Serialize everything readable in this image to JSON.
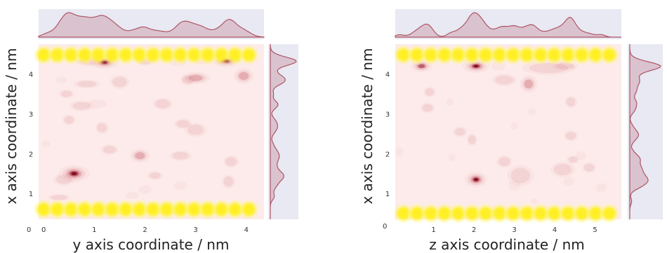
{
  "chart_data": [
    {
      "type": "heatmap",
      "subtype": "kde-joint-plot-with-marginals",
      "xlabel": "y axis coordinate / nm",
      "ylabel": "x axis coordinate / nm",
      "xticks": [
        "0",
        "1",
        "2",
        "3",
        "4"
      ],
      "yticks": [
        "1",
        "2",
        "3",
        "4"
      ],
      "origin_label": "0",
      "xlim": [
        -0.1,
        4.35
      ],
      "ylim": [
        0.35,
        4.75
      ],
      "grid": false,
      "colors": {
        "background": "#fcebea",
        "density": "#7a0016",
        "marginal": "#b05566",
        "marginal_panel": "#e8e9f2",
        "walls": "#ffee22"
      },
      "wall_rows_y": [
        4.48,
        0.6
      ],
      "wall_beads_x": [
        0.0,
        0.27,
        0.54,
        0.81,
        1.08,
        1.35,
        1.62,
        1.89,
        2.16,
        2.43,
        2.7,
        2.97,
        3.24,
        3.51,
        3.78,
        4.05
      ],
      "points": [
        {
          "x": 1.2,
          "y": 4.3,
          "sx": 0.13,
          "sy": 0.08,
          "w": 1.0
        },
        {
          "x": 0.9,
          "y": 4.33,
          "sx": 0.13,
          "sy": 0.06,
          "w": 0.35
        },
        {
          "x": 3.6,
          "y": 4.33,
          "sx": 0.13,
          "sy": 0.07,
          "w": 0.95
        },
        {
          "x": 2.0,
          "y": 4.32,
          "sx": 0.08,
          "sy": 0.05,
          "w": 0.25
        },
        {
          "x": 2.65,
          "y": 4.32,
          "sx": 0.08,
          "sy": 0.05,
          "w": 0.2
        },
        {
          "x": 3.15,
          "y": 4.33,
          "sx": 0.07,
          "sy": 0.04,
          "w": 0.2
        },
        {
          "x": 0.6,
          "y": 1.5,
          "sx": 0.14,
          "sy": 0.1,
          "w": 1.0
        },
        {
          "x": 0.4,
          "y": 1.35,
          "sx": 0.1,
          "sy": 0.07,
          "w": 0.3
        },
        {
          "x": 1.5,
          "y": 3.8,
          "sx": 0.09,
          "sy": 0.08,
          "w": 0.4
        },
        {
          "x": 3.0,
          "y": 3.9,
          "sx": 0.13,
          "sy": 0.07,
          "w": 0.45
        },
        {
          "x": 2.85,
          "y": 3.85,
          "sx": 0.07,
          "sy": 0.06,
          "w": 0.25
        },
        {
          "x": 3.95,
          "y": 3.95,
          "sx": 0.09,
          "sy": 0.09,
          "w": 0.45
        },
        {
          "x": 0.85,
          "y": 3.75,
          "sx": 0.12,
          "sy": 0.05,
          "w": 0.25
        },
        {
          "x": 0.45,
          "y": 3.5,
          "sx": 0.07,
          "sy": 0.05,
          "w": 0.3
        },
        {
          "x": 0.35,
          "y": 3.85,
          "sx": 0.05,
          "sy": 0.04,
          "w": 0.2
        },
        {
          "x": 2.35,
          "y": 3.25,
          "sx": 0.09,
          "sy": 0.07,
          "w": 0.35
        },
        {
          "x": 0.75,
          "y": 3.2,
          "sx": 0.11,
          "sy": 0.06,
          "w": 0.35
        },
        {
          "x": 1.05,
          "y": 3.25,
          "sx": 0.09,
          "sy": 0.05,
          "w": 0.2
        },
        {
          "x": 3.0,
          "y": 2.6,
          "sx": 0.1,
          "sy": 0.08,
          "w": 0.4
        },
        {
          "x": 2.75,
          "y": 2.75,
          "sx": 0.08,
          "sy": 0.06,
          "w": 0.25
        },
        {
          "x": 0.5,
          "y": 2.85,
          "sx": 0.06,
          "sy": 0.06,
          "w": 0.3
        },
        {
          "x": 1.15,
          "y": 2.65,
          "sx": 0.06,
          "sy": 0.07,
          "w": 0.25
        },
        {
          "x": 1.3,
          "y": 2.1,
          "sx": 0.08,
          "sy": 0.06,
          "w": 0.35
        },
        {
          "x": 1.9,
          "y": 1.95,
          "sx": 0.09,
          "sy": 0.08,
          "w": 0.45
        },
        {
          "x": 2.7,
          "y": 1.95,
          "sx": 0.1,
          "sy": 0.06,
          "w": 0.3
        },
        {
          "x": 3.7,
          "y": 1.8,
          "sx": 0.07,
          "sy": 0.07,
          "w": 0.35
        },
        {
          "x": 2.2,
          "y": 1.45,
          "sx": 0.07,
          "sy": 0.05,
          "w": 0.25
        },
        {
          "x": 3.65,
          "y": 1.3,
          "sx": 0.06,
          "sy": 0.08,
          "w": 0.25
        },
        {
          "x": 2.7,
          "y": 1.2,
          "sx": 0.06,
          "sy": 0.05,
          "w": 0.2
        },
        {
          "x": 2.0,
          "y": 1.1,
          "sx": 0.06,
          "sy": 0.05,
          "w": 0.2
        },
        {
          "x": 0.3,
          "y": 0.9,
          "sx": 0.1,
          "sy": 0.04,
          "w": 0.25
        },
        {
          "x": 0.05,
          "y": 2.25,
          "sx": 0.04,
          "sy": 0.04,
          "w": 0.2
        },
        {
          "x": 1.75,
          "y": 0.95,
          "sx": 0.06,
          "sy": 0.04,
          "w": 0.2
        }
      ]
    },
    {
      "type": "heatmap",
      "subtype": "kde-joint-plot-with-marginals",
      "xlabel": "z axis coordinate / nm",
      "ylabel": "x axis coordinate / nm",
      "xticks": [
        "1",
        "2",
        "3",
        "4",
        "5"
      ],
      "yticks": [
        "1",
        "2",
        "3",
        "4"
      ],
      "origin_label": "0",
      "xlim": [
        0.05,
        5.65
      ],
      "ylim": [
        0.35,
        4.75
      ],
      "grid": false,
      "colors": {
        "background": "#fcebea",
        "density": "#7a0016",
        "marginal": "#b05566",
        "marginal_panel": "#e8e9f2",
        "walls": "#ffee22"
      },
      "wall_rows_y": [
        4.48,
        0.5
      ],
      "wall_beads_x": [
        0.25,
        0.59,
        0.93,
        1.27,
        1.61,
        1.95,
        2.29,
        2.63,
        2.97,
        3.31,
        3.65,
        3.99,
        4.33,
        4.67,
        5.01,
        5.35
      ],
      "points": [
        {
          "x": 2.05,
          "y": 4.2,
          "sx": 0.15,
          "sy": 0.08,
          "w": 1.0
        },
        {
          "x": 0.7,
          "y": 4.2,
          "sx": 0.12,
          "sy": 0.07,
          "w": 0.75
        },
        {
          "x": 3.85,
          "y": 4.15,
          "sx": 0.3,
          "sy": 0.08,
          "w": 0.4
        },
        {
          "x": 4.25,
          "y": 4.2,
          "sx": 0.15,
          "sy": 0.05,
          "w": 0.25
        },
        {
          "x": 2.6,
          "y": 4.2,
          "sx": 0.08,
          "sy": 0.05,
          "w": 0.2
        },
        {
          "x": 2.05,
          "y": 1.35,
          "sx": 0.13,
          "sy": 0.09,
          "w": 0.95
        },
        {
          "x": 2.75,
          "y": 3.85,
          "sx": 0.14,
          "sy": 0.07,
          "w": 0.4
        },
        {
          "x": 3.35,
          "y": 3.75,
          "sx": 0.1,
          "sy": 0.1,
          "w": 0.45
        },
        {
          "x": 0.9,
          "y": 3.55,
          "sx": 0.07,
          "sy": 0.06,
          "w": 0.3
        },
        {
          "x": 0.85,
          "y": 3.15,
          "sx": 0.08,
          "sy": 0.06,
          "w": 0.3
        },
        {
          "x": 4.4,
          "y": 3.3,
          "sx": 0.07,
          "sy": 0.07,
          "w": 0.3
        },
        {
          "x": 1.4,
          "y": 3.3,
          "sx": 0.04,
          "sy": 0.04,
          "w": 0.15
        },
        {
          "x": 3.45,
          "y": 3.05,
          "sx": 0.05,
          "sy": 0.04,
          "w": 0.15
        },
        {
          "x": 1.65,
          "y": 2.55,
          "sx": 0.08,
          "sy": 0.06,
          "w": 0.35
        },
        {
          "x": 1.95,
          "y": 2.35,
          "sx": 0.06,
          "sy": 0.07,
          "w": 0.25
        },
        {
          "x": 3.0,
          "y": 2.7,
          "sx": 0.04,
          "sy": 0.04,
          "w": 0.15
        },
        {
          "x": 4.4,
          "y": 2.45,
          "sx": 0.08,
          "sy": 0.06,
          "w": 0.35
        },
        {
          "x": 4.45,
          "y": 1.85,
          "sx": 0.07,
          "sy": 0.05,
          "w": 0.25
        },
        {
          "x": 4.2,
          "y": 1.6,
          "sx": 0.14,
          "sy": 0.09,
          "w": 0.35
        },
        {
          "x": 4.85,
          "y": 1.65,
          "sx": 0.08,
          "sy": 0.06,
          "w": 0.25
        },
        {
          "x": 4.65,
          "y": 1.95,
          "sx": 0.06,
          "sy": 0.05,
          "w": 0.2
        },
        {
          "x": 4.35,
          "y": 1.3,
          "sx": 0.06,
          "sy": 0.05,
          "w": 0.2
        },
        {
          "x": 2.75,
          "y": 1.8,
          "sx": 0.09,
          "sy": 0.07,
          "w": 0.3
        },
        {
          "x": 3.15,
          "y": 1.45,
          "sx": 0.15,
          "sy": 0.12,
          "w": 0.3
        },
        {
          "x": 3.0,
          "y": 1.2,
          "sx": 0.07,
          "sy": 0.06,
          "w": 0.2
        },
        {
          "x": 5.15,
          "y": 1.15,
          "sx": 0.06,
          "sy": 0.05,
          "w": 0.2
        },
        {
          "x": 0.15,
          "y": 2.05,
          "sx": 0.05,
          "sy": 0.05,
          "w": 0.2
        },
        {
          "x": 1.45,
          "y": 1.9,
          "sx": 0.04,
          "sy": 0.04,
          "w": 0.15
        },
        {
          "x": 3.5,
          "y": 0.8,
          "sx": 0.04,
          "sy": 0.03,
          "w": 0.15
        }
      ]
    }
  ]
}
